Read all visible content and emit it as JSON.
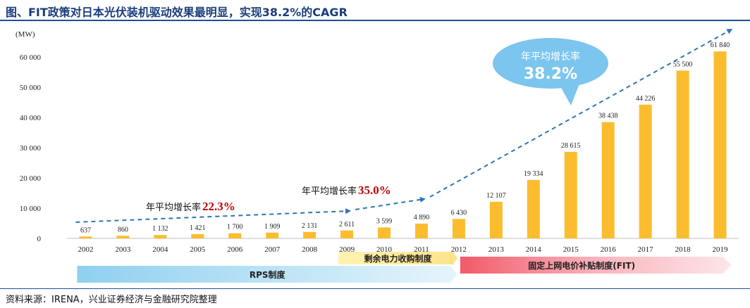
{
  "title": "图、FIT政策对日本光伏装机驱动效果最明显，实现38.2%的CAGR",
  "source": "资料来源：IRENA，兴业证券经济与金融研究院整理",
  "colors": {
    "bar": "#fbbd2e",
    "trend": "#2e75b6",
    "bubble": "#7cc5ee",
    "highlight": "#c00000"
  },
  "chart_data": {
    "type": "bar",
    "ylabel": "(MW)",
    "ylim": [
      0,
      70000
    ],
    "yticks": [
      0,
      10000,
      20000,
      30000,
      40000,
      50000,
      60000
    ],
    "ytick_labels": [
      "0",
      "10 000",
      "20 000",
      "30 000",
      "40 000",
      "50 000",
      "60 000"
    ],
    "categories": [
      "2002",
      "2003",
      "2004",
      "2005",
      "2006",
      "2007",
      "2008",
      "2009",
      "2010",
      "2011",
      "2012",
      "2013",
      "2014",
      "2015",
      "2016",
      "2017",
      "2018",
      "2019"
    ],
    "values": [
      637,
      860,
      1132,
      1421,
      1700,
      1909,
      2131,
      2611,
      3599,
      4890,
      6430,
      12107,
      19334,
      28615,
      38438,
      44226,
      55500,
      61840
    ],
    "value_labels": [
      "637",
      "860",
      "1 132",
      "1 421",
      "1 700",
      "1 909",
      "2 131",
      "2 611",
      "3 599",
      "4 890",
      "6 430",
      "12 107",
      "19 334",
      "28 615",
      "38 438",
      "44 226",
      "55 500",
      "61 840"
    ],
    "annotations": [
      {
        "label": "年平均增长率",
        "value": "22.3%",
        "from": "2002",
        "to": "2009"
      },
      {
        "label": "年平均增长率",
        "value": "35.0%",
        "from": "2009",
        "to": "2011"
      },
      {
        "label": "年平均增长率",
        "value": "38.2%",
        "from": "2011",
        "to": "2019"
      }
    ],
    "periods": [
      {
        "label": "RPS制度",
        "from": "2002",
        "to": "2012"
      },
      {
        "label": "剩余电力收购制度",
        "from": "2009",
        "to": "2012"
      },
      {
        "label": "固定上网电价补贴制度(FIT)",
        "from": "2012",
        "to": "2019"
      }
    ]
  }
}
